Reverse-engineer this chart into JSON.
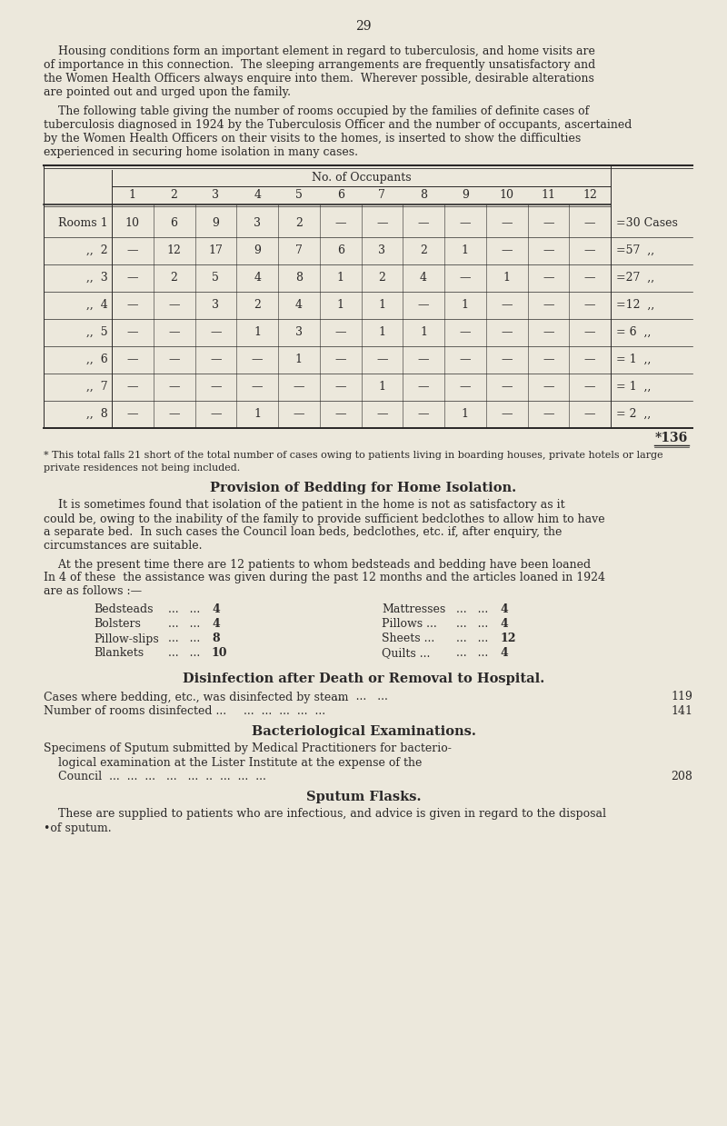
{
  "bg_color": "#ece8dc",
  "text_color": "#2a2828",
  "page_number": "29",
  "para1_line1": "    Housing conditions form an important element in regard to tuberculosis, and home visits are",
  "para1_line2": "of importance in this connection.  The sleeping arrangements are frequently unsatisfactory and",
  "para1_line3": "the Women Health Officers always enquire into them.  Wherever possible, desirable alterations",
  "para1_line4": "are pointed out and urged upon the family.",
  "para2_line1": "    The following table giving the number of rooms occupied by the families of definite cases of",
  "para2_line2": "tuberculosis diagnosed in 1924 by the Tuberculosis Officer and the number of occupants, ascertained",
  "para2_line3": "by the Women Health Officers on their visits to the homes, is inserted to show the difficulties",
  "para2_line4": "experienced in securing home isolation in many cases.",
  "table_header": "No. of Occupants",
  "col_headers": [
    "1",
    "2",
    "3",
    "4",
    "5",
    "6",
    "7",
    "8",
    "9",
    "10",
    "11",
    "12"
  ],
  "row_labels": [
    "Rooms 1",
    ",,  2",
    ",,  3",
    ",,  4",
    ",,  5",
    ",,  6",
    ",,  7",
    ",,  8"
  ],
  "table_data": [
    [
      "10",
      "6",
      "9",
      "3",
      "2",
      "—",
      "—",
      "—",
      "—",
      "—",
      "—",
      "—"
    ],
    [
      "—",
      "12",
      "17",
      "9",
      "7",
      "6",
      "3",
      "2",
      "1",
      "—",
      "—",
      "—"
    ],
    [
      "—",
      "2",
      "5",
      "4",
      "8",
      "1",
      "2",
      "4",
      "—",
      "1",
      "—",
      "—"
    ],
    [
      "—",
      "—",
      "3",
      "2",
      "4",
      "1",
      "1",
      "—",
      "1",
      "—",
      "—",
      "—"
    ],
    [
      "—",
      "—",
      "—",
      "1",
      "3",
      "—",
      "1",
      "1",
      "—",
      "—",
      "—",
      "—"
    ],
    [
      "—",
      "—",
      "—",
      "—",
      "1",
      "—",
      "—",
      "—",
      "—",
      "—",
      "—",
      "—"
    ],
    [
      "—",
      "—",
      "—",
      "—",
      "—",
      "—",
      "1",
      "—",
      "—",
      "—",
      "—",
      "—"
    ],
    [
      "—",
      "—",
      "—",
      "1",
      "—",
      "—",
      "—",
      "—",
      "1",
      "—",
      "—",
      "—"
    ]
  ],
  "row_totals": [
    "=30 Cases",
    "=57  ,,",
    "=27  ,,",
    "=12  ,,",
    "= 6  ,,",
    "= 1  ,,",
    "= 1  ,,",
    "= 2  ,,"
  ],
  "grand_total": "*136",
  "footnote_line1": "* This total falls 21 short of the total number of cases owing to patients living in boarding houses, private hotels or large",
  "footnote_line2": "private residences not being included.",
  "section1_title": "Provision of Bedding for Home Isolation.",
  "section1_p1": "    It is sometimes found that isolation of the patient in the home is not as satisfactory as it",
  "section1_p2": "could be, owing to the inability of the family to provide sufficient bedclothes to allow him to have",
  "section1_p3": "a separate bed.  In such cases the Council loan beds, bedclothes, etc. if, after enquiry, the",
  "section1_p4": "circumstances are suitable.",
  "section1_p5": "    At the present time there are 12 patients to whom bedsteads and bedding have been loaned",
  "section1_p6": "In 4 of these  the assistance was given during the past 12 months and the articles loaned in 1924",
  "section1_p7": "are as follows :—",
  "items_left": [
    [
      "Bedsteads",
      "4"
    ],
    [
      "Bolsters",
      "4"
    ],
    [
      "Pillow-slips",
      "8"
    ],
    [
      "Blankets",
      "10"
    ]
  ],
  "items_right": [
    [
      "Mattresses",
      "4"
    ],
    [
      "Pillows ...",
      "4"
    ],
    [
      "Sheets ...",
      "12"
    ],
    [
      "Quilts ...",
      "4"
    ]
  ],
  "section2_title": "Disinfection after Death or Removal to Hospital.",
  "section2_line1_text": "Cases where bedding, etc., was disinfected by steam",
  "section2_line1_dots": "...   ...   ...",
  "section2_line1_val": "119",
  "section2_line2_text": "Number of rooms disinfected ...",
  "section2_line2_dots": "...  ...  ...  ...  ...",
  "section2_line2_val": "141",
  "section3_title": "Bacteriological Examinations.",
  "section3_p1": "Specimens of Sputum submitted by Medical Practitioners for bacterio-",
  "section3_p2": "    logical examination at the Lister Institute at the expense of the",
  "section3_p3": "    Council  ...  ...  ...   ...   ...  ..  ...  ...  ...",
  "section3_val": "208",
  "section4_title": "Sputum Flasks.",
  "section4_p1": "    These are supplied to patients who are infectious, and advice is given in regard to the disposal",
  "section4_p2": "•of sputum."
}
